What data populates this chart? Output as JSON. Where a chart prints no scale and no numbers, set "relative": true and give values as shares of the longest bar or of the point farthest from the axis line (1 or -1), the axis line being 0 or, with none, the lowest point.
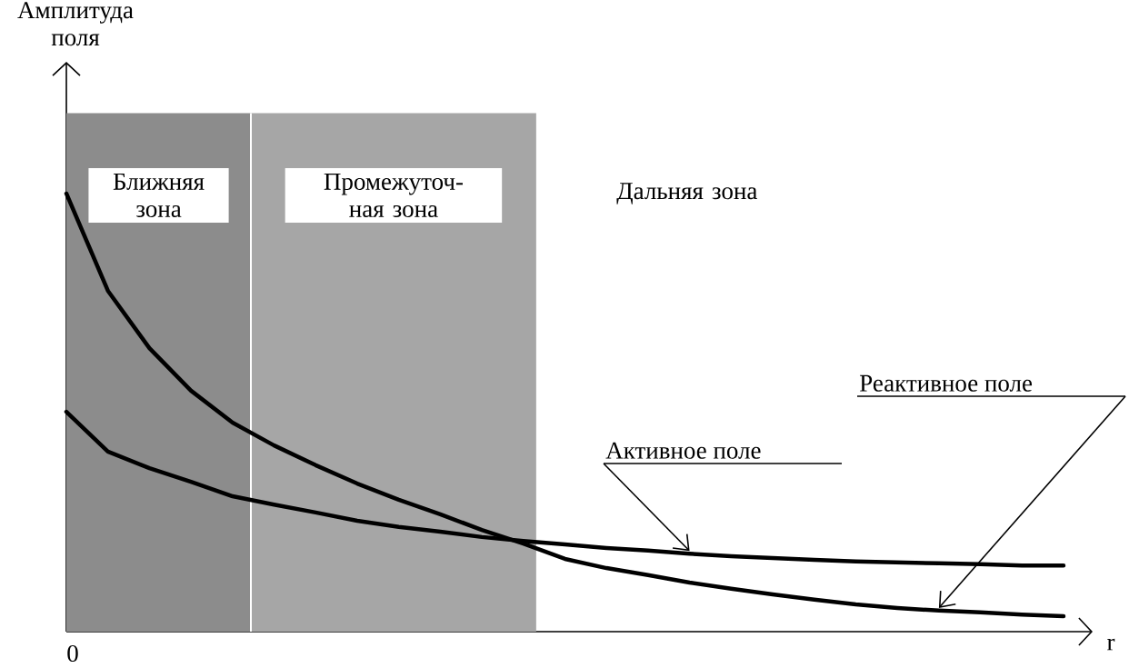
{
  "chart_data": {
    "type": "line",
    "relative": true,
    "xlabel": "r",
    "categories": [
      null,
      null,
      null,
      null,
      null,
      null,
      null,
      null,
      null,
      null,
      null,
      null,
      null,
      null,
      null,
      null,
      null,
      null,
      null,
      null,
      null,
      null,
      null,
      null,
      null
    ],
    "series": [
      {
        "color": "#000000",
        "values": [
          1.0,
          0.778,
          0.647,
          0.55,
          0.477,
          0.425,
          0.38,
          0.338,
          0.301,
          0.268,
          0.232,
          0.201,
          0.166,
          0.145,
          0.129,
          0.112,
          0.098,
          0.085,
          0.073,
          0.062,
          0.054,
          0.048,
          0.044,
          0.039,
          0.035
        ]
      },
      {
        "color": "#000000",
        "values": [
          0.502,
          0.411,
          0.373,
          0.342,
          0.309,
          0.29,
          0.272,
          0.253,
          0.239,
          0.228,
          0.216,
          0.207,
          0.199,
          0.191,
          0.185,
          0.178,
          0.172,
          0.168,
          0.164,
          0.16,
          0.158,
          0.156,
          0.154,
          0.151,
          0.151
        ]
      }
    ],
    "annotations": [
      "Амплитуда поля",
      "Ближняя зона",
      "Промежуточ-ная зона",
      "Дальняя зона",
      "0",
      "Реактивное поле",
      "Активное поле"
    ],
    "marker": "none",
    "line_style": "solid"
  }
}
